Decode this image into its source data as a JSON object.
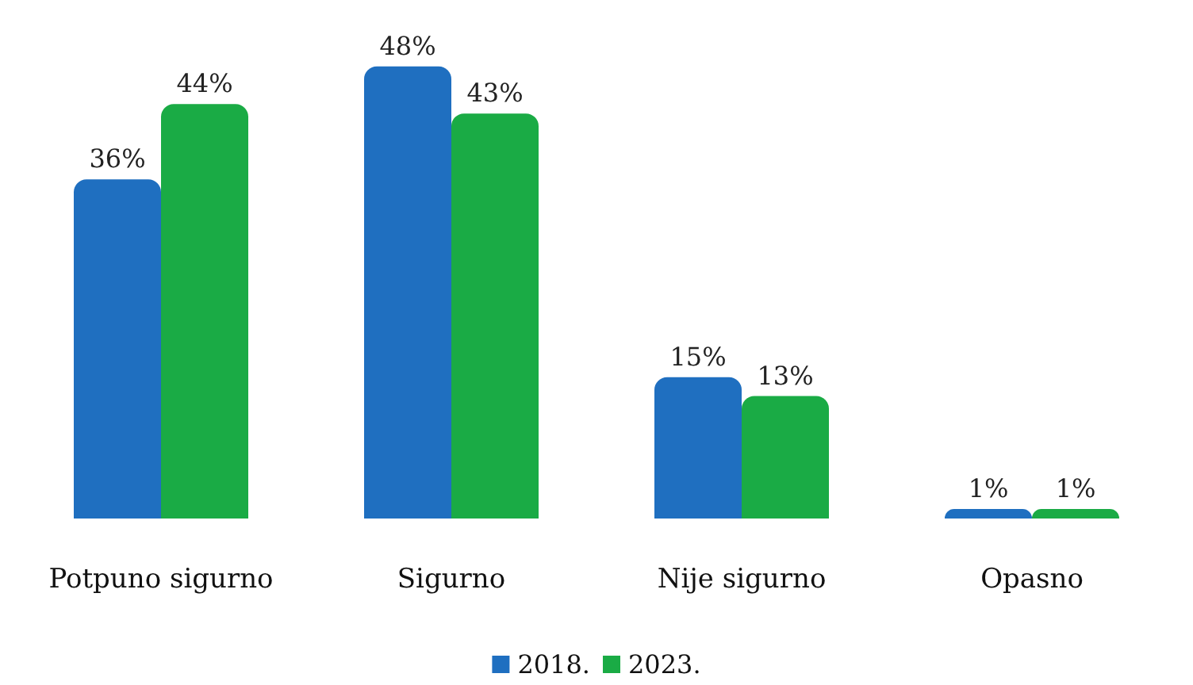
{
  "chart_data": {
    "type": "bar",
    "categories": [
      "Potpuno sigurno",
      "Sigurno",
      "Nije sigurno",
      "Opasno"
    ],
    "series": [
      {
        "name": "2018.",
        "color": "#1f6fc0",
        "values": [
          36,
          48,
          15,
          1
        ],
        "value_labels": [
          "36%",
          "48%",
          "15%",
          "1%"
        ]
      },
      {
        "name": "2023.",
        "color": "#1aab45",
        "values": [
          44,
          43,
          13,
          1
        ],
        "value_labels": [
          "44%",
          "43%",
          "13%",
          "1%"
        ]
      }
    ],
    "legend": "bottom"
  }
}
